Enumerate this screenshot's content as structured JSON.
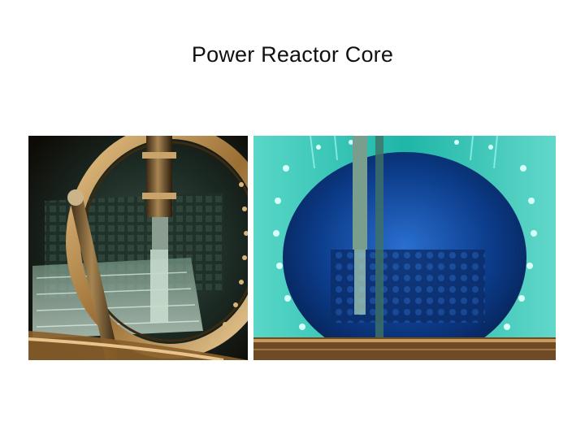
{
  "slide": {
    "title": "Power Reactor Core"
  },
  "photos": [
    {
      "subject": "reactor-core-vessel-refueling-view",
      "palette": [
        "#2b1d0c",
        "#b08a4e",
        "#3c5a48"
      ]
    },
    {
      "subject": "reactor-core-underwater-cherenkov-glow",
      "palette": [
        "#0a2a6a",
        "#2fd3c4",
        "#9ff5ea"
      ]
    }
  ]
}
